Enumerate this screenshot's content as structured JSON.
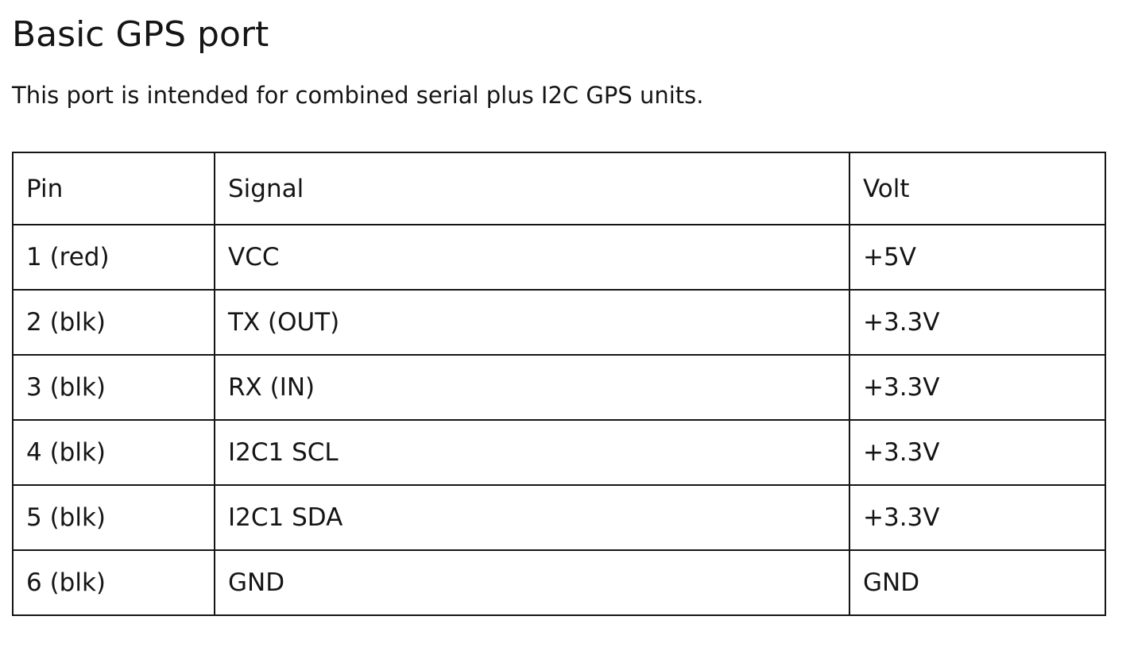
{
  "doc": {
    "title": "Basic GPS port",
    "intro": "This port is intended for combined serial plus I2C GPS units."
  },
  "table": {
    "headers": {
      "pin": "Pin",
      "signal": "Signal",
      "volt": "Volt"
    },
    "rows": [
      {
        "pin": "1 (red)",
        "signal": "VCC",
        "volt": "+5V"
      },
      {
        "pin": "2 (blk)",
        "signal": "TX (OUT)",
        "volt": "+3.3V"
      },
      {
        "pin": "3 (blk)",
        "signal": "RX (IN)",
        "volt": "+3.3V"
      },
      {
        "pin": "4 (blk)",
        "signal": "I2C1 SCL",
        "volt": "+3.3V"
      },
      {
        "pin": "5 (blk)",
        "signal": "I2C1 SDA",
        "volt": "+3.3V"
      },
      {
        "pin": "6 (blk)",
        "signal": "GND",
        "volt": "GND"
      }
    ]
  }
}
